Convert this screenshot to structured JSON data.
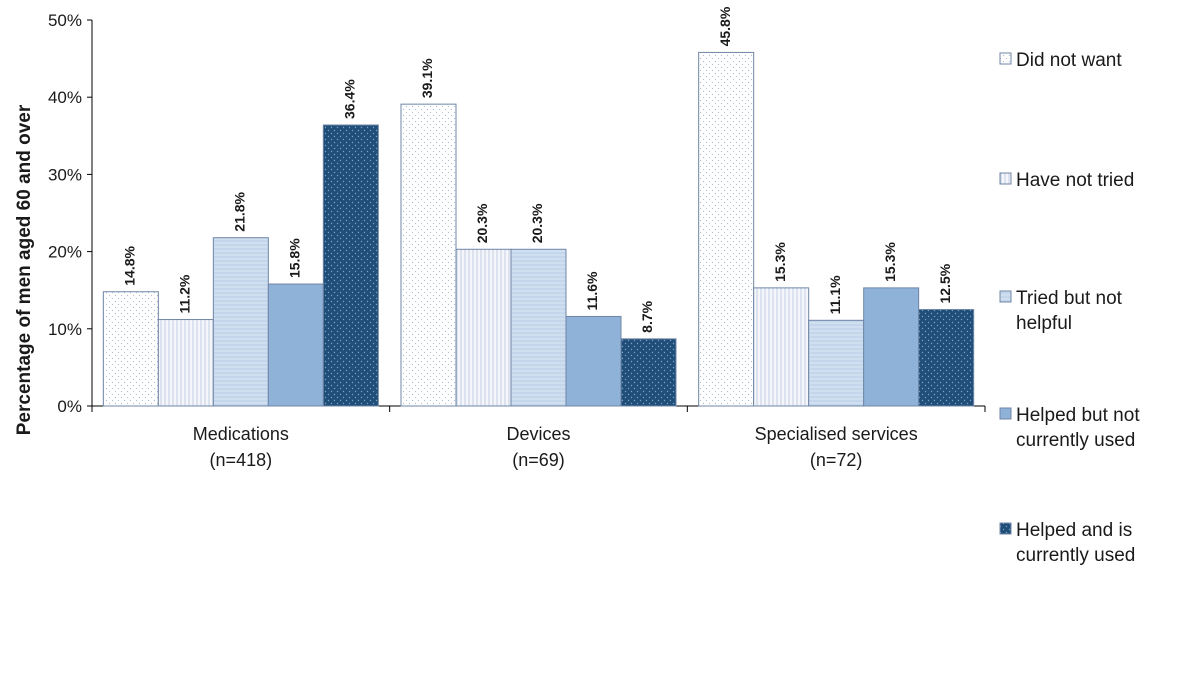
{
  "chart_data": {
    "type": "bar",
    "ylabel": "Percentage of men aged 60 and over",
    "xlabel": "",
    "ylim": [
      0,
      50
    ],
    "yticks": [
      "0%",
      "10%",
      "20%",
      "30%",
      "40%",
      "50%"
    ],
    "yticks_values": [
      0,
      10,
      20,
      30,
      40,
      50
    ],
    "grid": false,
    "legend_position": "right",
    "categories": [
      {
        "name": "Medications",
        "n": "(n=418)"
      },
      {
        "name": "Devices",
        "n": "(n=69)"
      },
      {
        "name": "Specialised services",
        "n": "(n=72)"
      }
    ],
    "series": [
      {
        "name": "Did not want",
        "legend_lines": [
          "Did not want"
        ],
        "values": [
          14.8,
          39.1,
          45.8
        ],
        "labels": [
          "14.8%",
          "39.1%",
          "45.8%"
        ],
        "fill": "#ffffff",
        "pattern": "dots-light"
      },
      {
        "name": "Have not tried",
        "legend_lines": [
          "Have not tried"
        ],
        "values": [
          11.2,
          20.3,
          15.3
        ],
        "labels": [
          "11.2%",
          "20.3%",
          "15.3%"
        ],
        "fill": "#f4f6fb",
        "pattern": "vertical-lines"
      },
      {
        "name": "Tried but not helpful",
        "legend_lines": [
          "Tried but not",
          "helpful"
        ],
        "values": [
          21.8,
          20.3,
          11.1
        ],
        "labels": [
          "21.8%",
          "20.3%",
          "11.1%"
        ],
        "fill": "#cfdff0",
        "pattern": "horizontal-lines"
      },
      {
        "name": "Helped but not currently used",
        "legend_lines": [
          "Helped but not",
          "currently used"
        ],
        "values": [
          15.8,
          11.6,
          15.3
        ],
        "labels": [
          "15.8%",
          "11.6%",
          "15.3%"
        ],
        "fill": "#8fb2d8",
        "pattern": "solid"
      },
      {
        "name": "Helped and is currently used",
        "legend_lines": [
          "Helped and is",
          "currently used"
        ],
        "values": [
          36.4,
          8.7,
          12.5
        ],
        "labels": [
          "36.4%",
          "8.7%",
          "12.5%"
        ],
        "fill": "#1f4e79",
        "pattern": "dots-dark"
      }
    ],
    "colors": {
      "bar_outline": "#6f86a6",
      "axis": "#000000"
    }
  }
}
